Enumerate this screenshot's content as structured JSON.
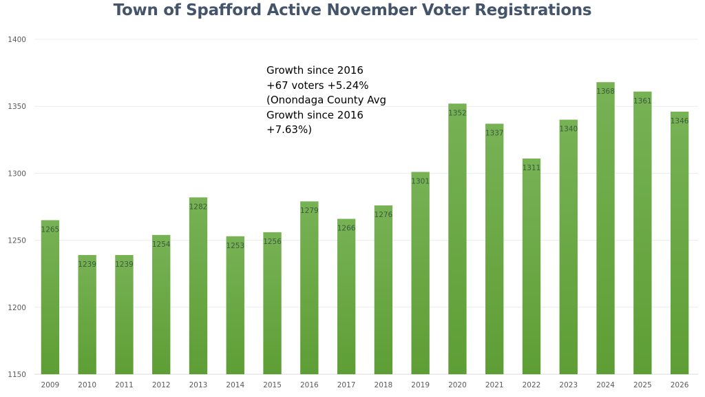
{
  "chart_data": {
    "type": "bar",
    "title": "Town of Spafford Active November Voter Registrations",
    "xlabel": "",
    "ylabel": "",
    "categories": [
      "2009",
      "2010",
      "2011",
      "2012",
      "2013",
      "2014",
      "2015",
      "2016",
      "2017",
      "2018",
      "2019",
      "2020",
      "2021",
      "2022",
      "2023",
      "2024",
      "2025",
      "2026"
    ],
    "values": [
      1265,
      1239,
      1239,
      1254,
      1282,
      1253,
      1256,
      1279,
      1266,
      1276,
      1301,
      1352,
      1337,
      1311,
      1340,
      1368,
      1361,
      1346
    ],
    "ylim": [
      1150,
      1400
    ],
    "yticks": [
      1150,
      1200,
      1250,
      1300,
      1350,
      1400
    ],
    "grid": true,
    "legend": "none",
    "data_labels": "inside-end",
    "bar_color_top": "#77b255",
    "bar_color_bottom": "#5e9e35",
    "annotation": [
      "Growth since 2016",
      "+67 voters +5.24%",
      "(Onondaga County Avg",
      "Growth since 2016",
      "+7.63%)"
    ]
  }
}
